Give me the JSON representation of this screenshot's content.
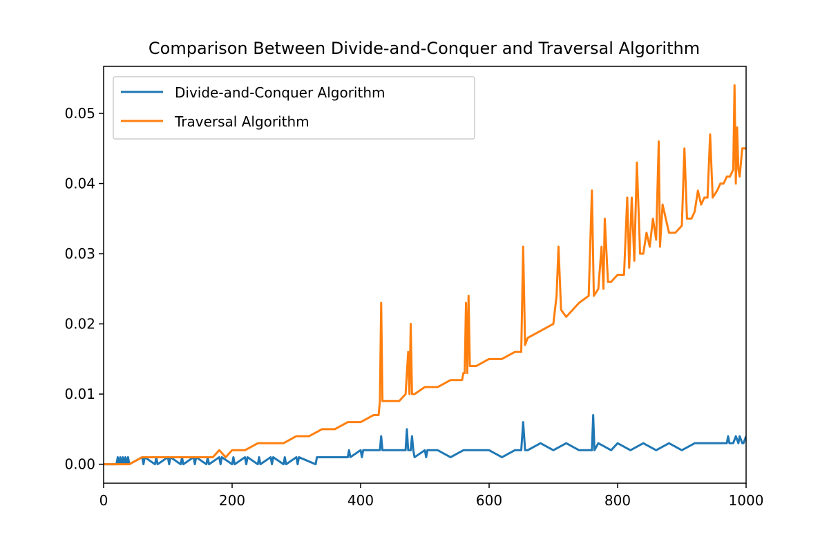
{
  "chart_data": {
    "type": "line",
    "title": "Comparison Between Divide-and-Conquer and Traversal Algorithm",
    "xlabel": "",
    "ylabel": "",
    "xlim": [
      0,
      1000
    ],
    "ylim": [
      -0.0027,
      0.0567
    ],
    "x_ticks": [
      0,
      200,
      400,
      600,
      800,
      1000
    ],
    "y_ticks": [
      0.0,
      0.01,
      0.02,
      0.03,
      0.04,
      0.05
    ],
    "x_tick_labels": [
      "0",
      "200",
      "400",
      "600",
      "800",
      "1000"
    ],
    "y_tick_labels": [
      "0.00",
      "0.01",
      "0.02",
      "0.03",
      "0.04",
      "0.05"
    ],
    "grid": false,
    "legend_position": "top-left",
    "colors": {
      "divide": "#1f77b4",
      "traversal": "#ff7f0e"
    },
    "series": [
      {
        "name": "Divide-and-Conquer Algorithm",
        "x": [
          0,
          20,
          22,
          24,
          26,
          28,
          30,
          32,
          34,
          36,
          38,
          40,
          60,
          62,
          64,
          80,
          82,
          84,
          100,
          102,
          104,
          120,
          122,
          124,
          140,
          142,
          144,
          160,
          162,
          164,
          180,
          182,
          184,
          200,
          202,
          204,
          220,
          222,
          224,
          240,
          242,
          244,
          260,
          262,
          264,
          280,
          282,
          284,
          300,
          302,
          304,
          330,
          332,
          334,
          340,
          380,
          382,
          384,
          400,
          402,
          404,
          420,
          430,
          432,
          434,
          440,
          460,
          470,
          472,
          474,
          478,
          480,
          482,
          484,
          500,
          502,
          504,
          520,
          540,
          560,
          580,
          600,
          620,
          640,
          650,
          653,
          656,
          660,
          680,
          700,
          720,
          740,
          760,
          762,
          764,
          770,
          790,
          800,
          820,
          840,
          860,
          880,
          900,
          920,
          940,
          960,
          970,
          972,
          974,
          980,
          984,
          988,
          990,
          994,
          996,
          1000
        ],
        "values": [
          0.0,
          0.0,
          0.001,
          0.0,
          0.001,
          0.0,
          0.001,
          0.0,
          0.001,
          0.0,
          0.001,
          0.0,
          0.001,
          0.0,
          0.001,
          0.0,
          0.001,
          0.0,
          0.001,
          0.0,
          0.001,
          0.0,
          0.001,
          0.0,
          0.001,
          0.0,
          0.001,
          0.0,
          0.001,
          0.0,
          0.001,
          0.0,
          0.001,
          0.0,
          0.001,
          0.0,
          0.001,
          0.0,
          0.001,
          0.0,
          0.001,
          0.0,
          0.001,
          0.0,
          0.001,
          0.0,
          0.001,
          0.0,
          0.001,
          0.0,
          0.001,
          0.0,
          0.001,
          0.001,
          0.001,
          0.001,
          0.002,
          0.001,
          0.002,
          0.001,
          0.002,
          0.002,
          0.002,
          0.004,
          0.002,
          0.002,
          0.002,
          0.002,
          0.005,
          0.002,
          0.002,
          0.004,
          0.002,
          0.001,
          0.002,
          0.001,
          0.002,
          0.002,
          0.001,
          0.002,
          0.002,
          0.002,
          0.001,
          0.002,
          0.002,
          0.006,
          0.002,
          0.002,
          0.003,
          0.002,
          0.003,
          0.002,
          0.002,
          0.007,
          0.002,
          0.003,
          0.002,
          0.003,
          0.002,
          0.003,
          0.002,
          0.003,
          0.002,
          0.003,
          0.003,
          0.003,
          0.003,
          0.004,
          0.003,
          0.003,
          0.004,
          0.003,
          0.004,
          0.003,
          0.003,
          0.004
        ]
      },
      {
        "name": "Traversal Algorithm",
        "x": [
          0,
          40,
          60,
          80,
          100,
          120,
          140,
          150,
          160,
          170,
          180,
          190,
          200,
          210,
          220,
          240,
          260,
          280,
          300,
          320,
          340,
          360,
          380,
          400,
          420,
          428,
          430,
          432,
          434,
          440,
          460,
          470,
          474,
          476,
          478,
          480,
          482,
          484,
          500,
          520,
          540,
          558,
          560,
          562,
          564,
          566,
          568,
          570,
          580,
          600,
          620,
          640,
          650,
          653,
          656,
          660,
          680,
          700,
          705,
          708,
          712,
          720,
          740,
          755,
          760,
          763,
          770,
          775,
          778,
          780,
          785,
          790,
          800,
          810,
          815,
          818,
          822,
          826,
          830,
          835,
          840,
          845,
          850,
          855,
          860,
          864,
          866,
          870,
          880,
          890,
          900,
          904,
          908,
          915,
          920,
          925,
          930,
          935,
          940,
          944,
          948,
          955,
          960,
          965,
          970,
          975,
          980,
          982,
          984,
          986,
          988,
          990,
          994,
          1000
        ],
        "values": [
          0.0,
          0.0,
          0.001,
          0.001,
          0.001,
          0.001,
          0.001,
          0.001,
          0.001,
          0.001,
          0.002,
          0.001,
          0.002,
          0.002,
          0.002,
          0.003,
          0.003,
          0.003,
          0.004,
          0.004,
          0.005,
          0.005,
          0.006,
          0.006,
          0.007,
          0.007,
          0.009,
          0.023,
          0.009,
          0.009,
          0.009,
          0.01,
          0.016,
          0.01,
          0.02,
          0.01,
          0.01,
          0.01,
          0.011,
          0.011,
          0.012,
          0.012,
          0.013,
          0.013,
          0.023,
          0.013,
          0.024,
          0.014,
          0.014,
          0.015,
          0.015,
          0.016,
          0.016,
          0.031,
          0.017,
          0.018,
          0.019,
          0.02,
          0.024,
          0.031,
          0.022,
          0.021,
          0.023,
          0.024,
          0.039,
          0.024,
          0.025,
          0.031,
          0.025,
          0.035,
          0.026,
          0.026,
          0.027,
          0.027,
          0.038,
          0.028,
          0.038,
          0.029,
          0.043,
          0.03,
          0.03,
          0.033,
          0.031,
          0.035,
          0.032,
          0.046,
          0.031,
          0.037,
          0.033,
          0.033,
          0.034,
          0.045,
          0.035,
          0.035,
          0.036,
          0.039,
          0.037,
          0.038,
          0.038,
          0.047,
          0.038,
          0.039,
          0.04,
          0.04,
          0.041,
          0.041,
          0.042,
          0.054,
          0.04,
          0.048,
          0.042,
          0.041,
          0.045,
          0.045
        ]
      }
    ]
  }
}
